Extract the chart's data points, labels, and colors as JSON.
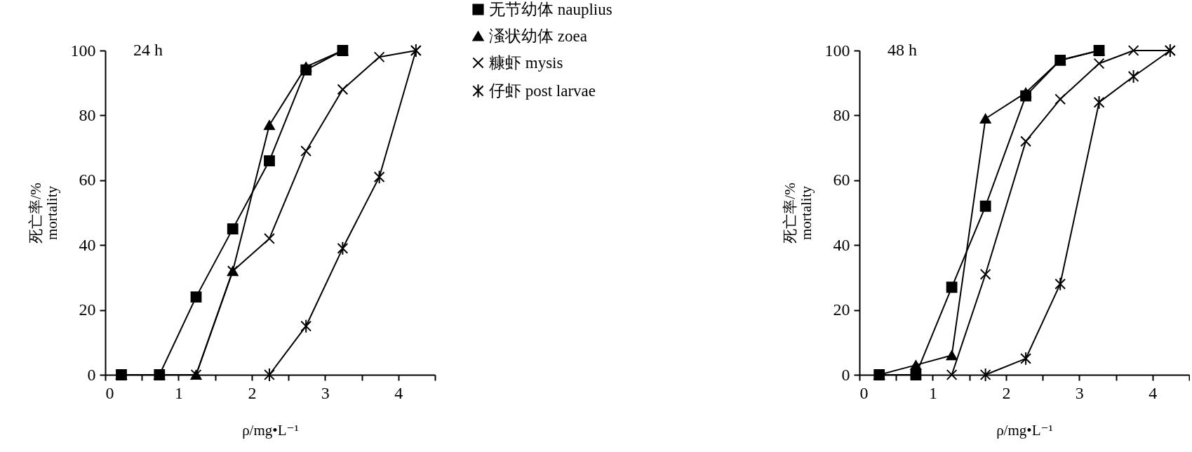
{
  "chart_data": [
    {
      "type": "line",
      "title": "24 h",
      "xlabel": "ρ/mg•L⁻¹",
      "ylabel": "死亡率/%\nmortality",
      "xlim": [
        0,
        4.5
      ],
      "ylim": [
        0,
        100
      ],
      "xticks": [
        0,
        {
          "value": 0.5,
          "label": null
        },
        1,
        {
          "value": 1.5,
          "label": null
        },
        2,
        {
          "value": 2.5,
          "label": null
        },
        3,
        {
          "value": 3.5,
          "label": null
        },
        4,
        {
          "value": 4.5,
          "label": null
        }
      ],
      "yticks": [
        0,
        20,
        40,
        60,
        80,
        100
      ],
      "grid": false,
      "legend": "right",
      "series": [
        {
          "name": "无节幼体 nauplius",
          "color": "#000000",
          "marker": "square",
          "x": [
            0.22,
            0.74,
            1.24,
            1.74,
            2.24,
            2.74,
            3.24
          ],
          "values": [
            0,
            0,
            24,
            45,
            66,
            94,
            100
          ]
        },
        {
          "name": "溞状幼体 zoea",
          "color": "#000000",
          "marker": "triangle",
          "x": [
            0.22,
            0.74,
            1.24,
            1.74,
            2.24,
            2.74,
            3.24
          ],
          "values": [
            0,
            0,
            0,
            32,
            77,
            95,
            100
          ]
        },
        {
          "name": "糠虾 mysis",
          "color": "#000000",
          "marker": "cross",
          "x": [
            1.24,
            1.74,
            2.24,
            2.74,
            3.24,
            3.74,
            4.24
          ],
          "values": [
            0,
            32,
            42,
            69,
            88,
            98,
            100
          ]
        },
        {
          "name": "仔虾 post larvae",
          "color": "#000000",
          "marker": "cross",
          "x": [
            2.24,
            2.74,
            3.24,
            3.74,
            4.24
          ],
          "values": [
            0,
            15,
            39,
            61,
            100
          ]
        }
      ]
    },
    {
      "type": "line",
      "title": "48 h",
      "xlabel": "ρ/mg•L⁻¹",
      "ylabel": "死亡率/%\nmortality",
      "xlim": [
        0,
        4.5
      ],
      "ylim": [
        0,
        100
      ],
      "xticks": [
        0,
        {
          "value": 0.5,
          "label": null
        },
        1,
        {
          "value": 1.5,
          "label": null
        },
        2,
        {
          "value": 2.5,
          "label": null
        },
        3,
        {
          "value": 3.5,
          "label": null
        },
        4,
        {
          "value": 4.5,
          "label": null
        }
      ],
      "yticks": [
        0,
        20,
        40,
        60,
        80,
        100
      ],
      "grid": false,
      "series": [
        {
          "color": "#000000",
          "marker": "square",
          "x": [
            0.27,
            0.77,
            1.26,
            1.72,
            2.27,
            2.74,
            3.27
          ],
          "values": [
            0,
            0,
            27,
            52,
            86,
            97,
            100
          ]
        },
        {
          "color": "#000000",
          "marker": "triangle",
          "x": [
            0.27,
            0.77,
            1.26,
            1.72,
            2.27,
            2.74,
            3.27
          ],
          "values": [
            0,
            3,
            6,
            79,
            87,
            97,
            100
          ]
        },
        {
          "color": "#000000",
          "marker": "cross",
          "x": [
            1.26,
            1.72,
            2.27,
            2.74,
            3.27,
            3.74,
            4.24
          ],
          "values": [
            0,
            31,
            72,
            85,
            96,
            100,
            100
          ]
        },
        {
          "color": "#000000",
          "marker": "cross",
          "x": [
            1.72,
            2.27,
            2.74,
            3.27,
            3.74,
            4.24
          ],
          "values": [
            0,
            5,
            28,
            84,
            92,
            100
          ]
        }
      ]
    }
  ]
}
